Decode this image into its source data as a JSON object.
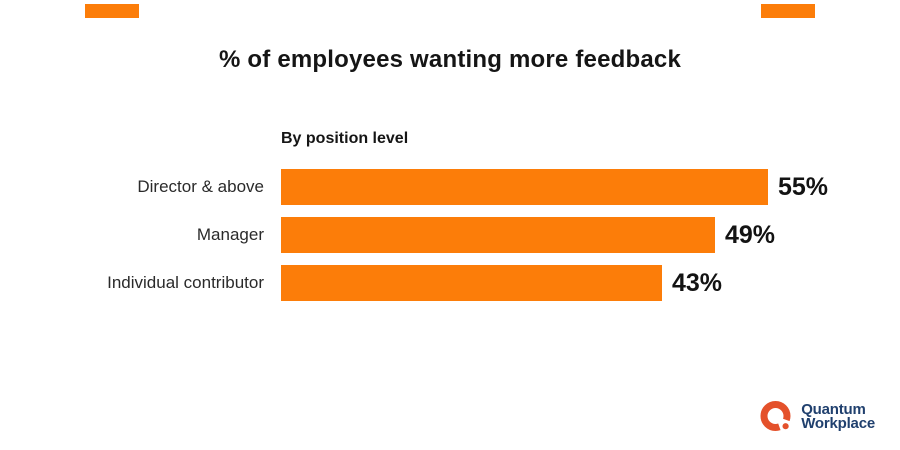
{
  "title": "% of employees wanting more feedback",
  "chart_data": {
    "type": "bar",
    "orientation": "horizontal",
    "title": "% of employees wanting more feedback",
    "group_label": "By position level",
    "categories": [
      "Director & above",
      "Manager",
      "Individual contributor"
    ],
    "values": [
      55,
      49,
      43
    ],
    "value_labels": [
      "55%",
      "49%",
      "43%"
    ],
    "value_suffix": "%",
    "xlim": [
      0,
      55
    ],
    "bar_color": "#FC7D09",
    "grid": false,
    "legend": false,
    "value_label_position": "right-of-bar",
    "axis_ticks": "none"
  },
  "decor": {
    "top_accent_color": "#FC7D09"
  },
  "branding": {
    "name_line1": "Quantum",
    "name_line2": "Workplace",
    "mark": "q-ring-icon",
    "mark_color": "#E4512B",
    "text_color": "#20406E"
  }
}
